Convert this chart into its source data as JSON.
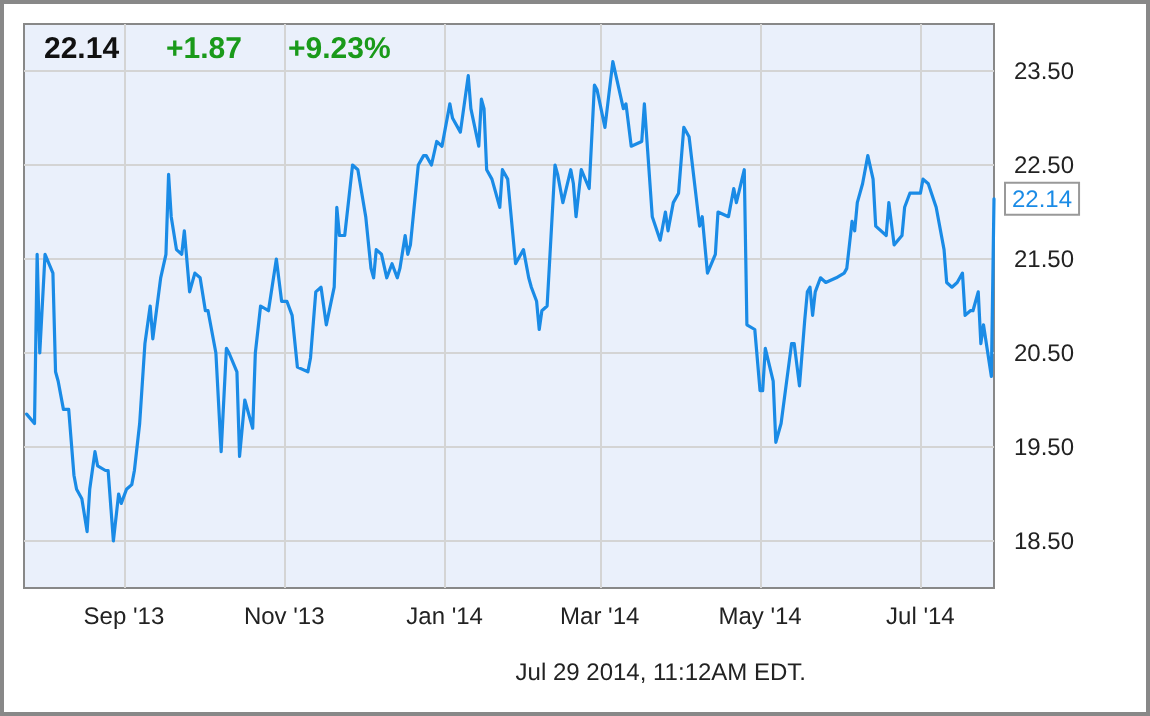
{
  "chart_data": {
    "type": "line",
    "color": "#1a8be6",
    "x": [
      "2013-07-26",
      "2013-07-29",
      "2013-07-30",
      "2013-07-31",
      "2013-08-02",
      "2013-08-05",
      "2013-08-06",
      "2013-08-07",
      "2013-08-09",
      "2013-08-11",
      "2013-08-13",
      "2013-08-14",
      "2013-08-16",
      "2013-08-18",
      "2013-08-19",
      "2013-08-21",
      "2013-08-22",
      "2013-08-25",
      "2013-08-26",
      "2013-08-28",
      "2013-08-30",
      "2013-08-31",
      "2013-09-02",
      "2013-09-04",
      "2013-09-05",
      "2013-09-07",
      "2013-09-09",
      "2013-09-11",
      "2013-09-12",
      "2013-09-15",
      "2013-09-17",
      "2013-09-18",
      "2013-09-19",
      "2013-09-21",
      "2013-09-23",
      "2013-09-24",
      "2013-09-26",
      "2013-09-28",
      "2013-09-30",
      "2013-10-02",
      "2013-10-03",
      "2013-10-06",
      "2013-10-08",
      "2013-10-10",
      "2013-10-11",
      "2013-10-14",
      "2013-10-15",
      "2013-10-17",
      "2013-10-20",
      "2013-10-21",
      "2013-10-23",
      "2013-10-26",
      "2013-10-29",
      "2013-10-31",
      "2013-11-02",
      "2013-11-04",
      "2013-11-06",
      "2013-11-10",
      "2013-11-11",
      "2013-11-13",
      "2013-11-15",
      "2013-11-17",
      "2013-11-20",
      "2013-11-21",
      "2013-11-22",
      "2013-11-24",
      "2013-11-27",
      "2013-11-29",
      "2013-12-02",
      "2013-12-04",
      "2013-12-05",
      "2013-12-06",
      "2013-12-08",
      "2013-12-10",
      "2013-12-12",
      "2013-12-14",
      "2013-12-15",
      "2013-12-17",
      "2013-12-18",
      "2013-12-19",
      "2013-12-22",
      "2013-12-24",
      "2013-12-25",
      "2013-12-27",
      "2013-12-29",
      "2013-12-31",
      "2014-01-03",
      "2014-01-04",
      "2014-01-07",
      "2014-01-10",
      "2014-01-11",
      "2014-01-14",
      "2014-01-15",
      "2014-01-16",
      "2014-01-17",
      "2014-01-19",
      "2014-01-22",
      "2014-01-23",
      "2014-01-25",
      "2014-01-26",
      "2014-01-28",
      "2014-01-29",
      "2014-01-31",
      "2014-02-02",
      "2014-02-03",
      "2014-02-05",
      "2014-02-06",
      "2014-02-07",
      "2014-02-09",
      "2014-02-12",
      "2014-02-13",
      "2014-02-15",
      "2014-02-18",
      "2014-02-19",
      "2014-02-20",
      "2014-02-22",
      "2014-02-25",
      "2014-02-27",
      "2014-02-28",
      "2014-03-03",
      "2014-03-06",
      "2014-03-10",
      "2014-03-11",
      "2014-03-13",
      "2014-03-17",
      "2014-03-18",
      "2014-03-21",
      "2014-03-24",
      "2014-03-26",
      "2014-03-27",
      "2014-03-29",
      "2014-03-31",
      "2014-04-02",
      "2014-04-04",
      "2014-04-08",
      "2014-04-09",
      "2014-04-11",
      "2014-04-14",
      "2014-04-15",
      "2014-04-19",
      "2014-04-21",
      "2014-04-22",
      "2014-04-25",
      "2014-04-26",
      "2014-04-29",
      "2014-05-01",
      "2014-05-02",
      "2014-05-03",
      "2014-05-06",
      "2014-05-07",
      "2014-05-09",
      "2014-05-13",
      "2014-05-14",
      "2014-05-16",
      "2014-05-18",
      "2014-05-19",
      "2014-05-20",
      "2014-05-21",
      "2014-05-22",
      "2014-05-24",
      "2014-05-26",
      "2014-05-30",
      "2014-06-02",
      "2014-06-03",
      "2014-06-05",
      "2014-06-06",
      "2014-06-07",
      "2014-06-09",
      "2014-06-11",
      "2014-06-13",
      "2014-06-14",
      "2014-06-18",
      "2014-06-19",
      "2014-06-21",
      "2014-06-24",
      "2014-06-25",
      "2014-06-27",
      "2014-07-01",
      "2014-07-02",
      "2014-07-04",
      "2014-07-07",
      "2014-07-10",
      "2014-07-11",
      "2014-07-13",
      "2014-07-15",
      "2014-07-17",
      "2014-07-18",
      "2014-07-20",
      "2014-07-21",
      "2014-07-23",
      "2014-07-24",
      "2014-07-25",
      "2014-07-28",
      "2014-07-29"
    ],
    "values": [
      19.85,
      19.75,
      21.55,
      20.5,
      21.55,
      21.35,
      20.3,
      20.2,
      19.9,
      19.9,
      19.2,
      19.05,
      18.95,
      18.6,
      19.05,
      19.45,
      19.3,
      19.25,
      19.25,
      18.5,
      19.0,
      18.9,
      19.05,
      19.1,
      19.25,
      19.75,
      20.6,
      21.0,
      20.65,
      21.3,
      21.55,
      22.4,
      21.95,
      21.6,
      21.55,
      21.8,
      21.15,
      21.35,
      21.3,
      20.95,
      20.95,
      20.5,
      19.45,
      20.55,
      20.5,
      20.3,
      19.4,
      20.0,
      19.7,
      20.5,
      21.0,
      20.95,
      21.5,
      21.05,
      21.05,
      20.9,
      20.35,
      20.3,
      20.45,
      21.15,
      21.2,
      20.8,
      21.2,
      22.05,
      21.75,
      21.75,
      22.5,
      22.45,
      21.95,
      21.4,
      21.3,
      21.6,
      21.55,
      21.3,
      21.45,
      21.3,
      21.4,
      21.75,
      21.55,
      21.65,
      22.5,
      22.6,
      22.6,
      22.5,
      22.75,
      22.7,
      23.15,
      23.0,
      22.85,
      23.45,
      23.1,
      22.7,
      23.2,
      23.1,
      22.45,
      22.35,
      22.05,
      22.45,
      22.35,
      22.05,
      21.45,
      21.5,
      21.6,
      21.3,
      21.2,
      21.05,
      20.75,
      20.95,
      21.0,
      22.5,
      22.4,
      22.1,
      22.45,
      22.3,
      21.95,
      22.45,
      22.25,
      23.35,
      23.3,
      22.9,
      23.6,
      23.1,
      23.15,
      22.7,
      22.75,
      23.15,
      21.95,
      21.7,
      22.0,
      21.8,
      22.1,
      22.2,
      22.9,
      22.8,
      21.85,
      21.95,
      21.35,
      21.55,
      22.0,
      21.95,
      22.25,
      22.1,
      22.45,
      20.8,
      20.75,
      20.1,
      20.1,
      20.55,
      20.2,
      19.55,
      19.75,
      20.6,
      20.6,
      20.15,
      20.85,
      21.15,
      21.2,
      20.9,
      21.15,
      21.3,
      21.25,
      21.3,
      21.35,
      21.4,
      21.9,
      21.8,
      22.1,
      22.3,
      22.6,
      22.35,
      21.85,
      21.75,
      22.1,
      21.65,
      21.75,
      22.05,
      22.2,
      22.2,
      22.35,
      22.3,
      22.05,
      21.6,
      21.25,
      21.2,
      21.25,
      21.35,
      20.9,
      20.95,
      20.95,
      21.15,
      20.6,
      20.8,
      20.25,
      22.14
    ],
    "xlim": [
      "2013-07-25",
      "2014-07-29"
    ],
    "xticks": [
      {
        "value": "2013-09-01",
        "label": "Sep '13"
      },
      {
        "value": "2013-11-01",
        "label": "Nov '13"
      },
      {
        "value": "2014-01-01",
        "label": "Jan '14"
      },
      {
        "value": "2014-03-01",
        "label": "Mar '14"
      },
      {
        "value": "2014-05-01",
        "label": "May '14"
      },
      {
        "value": "2014-07-01",
        "label": "Jul '14"
      }
    ],
    "ylim": [
      18,
      24
    ],
    "yticks": [
      {
        "value": 18.5,
        "label": "18.50"
      },
      {
        "value": 19.5,
        "label": "19.50"
      },
      {
        "value": 20.5,
        "label": "20.50"
      },
      {
        "value": 21.5,
        "label": "21.50"
      },
      {
        "value": 22.5,
        "label": "22.50"
      },
      {
        "value": 23.5,
        "label": "23.50"
      }
    ],
    "grid": true,
    "marker": "none",
    "line_style": "solid",
    "annotations": [
      "22.14",
      "+1.87",
      "+9.23%",
      {
        "text": "22.14",
        "x": "2014-07-29",
        "y": 22.14
      },
      "Jul 29 2014, 11:12AM EDT."
    ]
  }
}
